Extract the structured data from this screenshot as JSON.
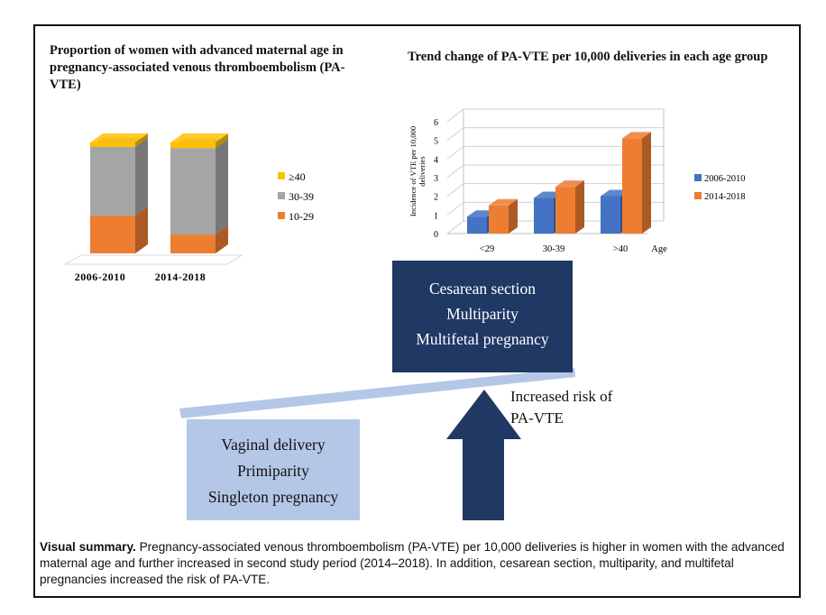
{
  "left_panel": {
    "title": "Proportion of women with advanced maternal age in pregnancy-associated venous thromboembolism (PA-VTE)"
  },
  "right_panel": {
    "title": "Trend change of PA-VTE per 10,000 deliveries in each age group"
  },
  "chart_data": [
    {
      "type": "bar",
      "stacked": true,
      "title": "Proportion of women with advanced maternal age in pregnancy-associated venous thromboembolism (PA-VTE)",
      "categories": [
        "2006-2010",
        "2014-2018"
      ],
      "series": [
        {
          "name": "10-29",
          "color": "#ed7d31",
          "values": [
            34,
            17
          ]
        },
        {
          "name": "30-39",
          "color": "#a5a5a5",
          "values": [
            62,
            78
          ]
        },
        {
          "name": "≥40",
          "color": "#ffc000",
          "values": [
            4,
            5
          ]
        }
      ],
      "ylim": [
        0,
        100
      ],
      "legend": "right",
      "style": "3d"
    },
    {
      "type": "bar",
      "title": "Trend change of PA-VTE per 10,000 deliveries in each age group",
      "categories": [
        "<29",
        "30-39",
        ">40"
      ],
      "xlabel": "Age",
      "ylabel": "Incidence of VTE per 10,000 deliveries",
      "yticks": [
        "0",
        "1",
        "2",
        "3",
        "4",
        "5",
        "6"
      ],
      "ylim": [
        0,
        6
      ],
      "series": [
        {
          "name": "2006-2010",
          "color": "#4472c4",
          "values": [
            1.2,
            2.2,
            2.3
          ]
        },
        {
          "name": "2014-2018",
          "color": "#ed7d31",
          "values": [
            1.8,
            2.8,
            5.4
          ]
        }
      ],
      "legend": "right",
      "grid": true,
      "style": "3d"
    }
  ],
  "diagram": {
    "high_risk_lines": [
      "Cesarean section",
      "Multiparity",
      "Multifetal pregnancy"
    ],
    "low_risk_lines": [
      "Vaginal delivery",
      "Primiparity",
      "Singleton pregnancy"
    ],
    "arrow_label_lines": [
      "Increased risk of",
      "PA-VTE"
    ],
    "colors": {
      "dark": "#1f3864",
      "light": "#b4c7e7",
      "beam": "#b4c7e7"
    }
  },
  "summary": {
    "lead": "Visual summary.",
    "text": " Pregnancy-associated venous thromboembolism (PA-VTE) per 10,000 deliveries is higher in women with the advanced maternal age and further increased in second study period (2014–2018). In addition, cesarean section, multiparity, and multifetal pregnancies increased the risk of PA-VTE."
  }
}
